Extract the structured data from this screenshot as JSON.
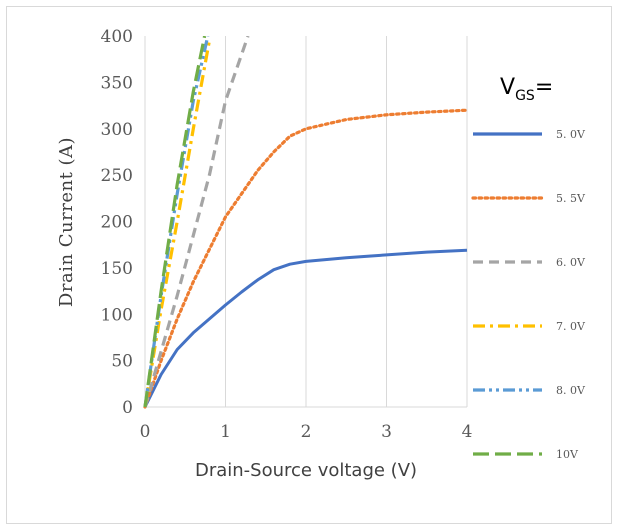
{
  "chart_data": {
    "type": "line",
    "title": "",
    "xlabel": "Drain-Source voltage (V)",
    "ylabel": "Drain Current (A)",
    "xlim": [
      0,
      4
    ],
    "ylim": [
      0,
      400
    ],
    "x_ticks": [
      "0",
      "1",
      "2",
      "3",
      "4"
    ],
    "y_ticks": [
      "0",
      "50",
      "100",
      "150",
      "200",
      "250",
      "300",
      "350",
      "400"
    ],
    "grid": "vertical",
    "legend_title": {
      "main": "V",
      "sub": "GS",
      "suffix": "="
    },
    "legend_position": "right",
    "series": [
      {
        "name": "5.0V",
        "color": "#4472c4",
        "style": "solid",
        "points": [
          [
            0,
            0
          ],
          [
            0.2,
            35
          ],
          [
            0.4,
            62
          ],
          [
            0.6,
            80
          ],
          [
            0.8,
            95
          ],
          [
            1.0,
            110
          ],
          [
            1.2,
            124
          ],
          [
            1.4,
            137
          ],
          [
            1.6,
            148
          ],
          [
            1.8,
            154
          ],
          [
            2.0,
            157
          ],
          [
            2.5,
            161
          ],
          [
            3.0,
            164
          ],
          [
            3.5,
            167
          ],
          [
            4.0,
            169
          ]
        ]
      },
      {
        "name": "5.5V",
        "color": "#ed7d31",
        "style": "dotted",
        "points": [
          [
            0,
            0
          ],
          [
            0.2,
            50
          ],
          [
            0.4,
            95
          ],
          [
            0.6,
            135
          ],
          [
            0.8,
            170
          ],
          [
            1.0,
            205
          ],
          [
            1.2,
            230
          ],
          [
            1.4,
            255
          ],
          [
            1.6,
            275
          ],
          [
            1.8,
            292
          ],
          [
            2.0,
            300
          ],
          [
            2.5,
            310
          ],
          [
            3.0,
            315
          ],
          [
            3.5,
            318
          ],
          [
            4.0,
            320
          ]
        ]
      },
      {
        "name": "6.0V",
        "color": "#a5a5a5",
        "style": "dashed",
        "points": [
          [
            0,
            0
          ],
          [
            0.2,
            60
          ],
          [
            0.4,
            120
          ],
          [
            0.6,
            185
          ],
          [
            0.8,
            250
          ],
          [
            1.0,
            330
          ],
          [
            1.28,
            400
          ]
        ]
      },
      {
        "name": "7.0V",
        "color": "#ffc000",
        "style": "dashdot",
        "points": [
          [
            0,
            0
          ],
          [
            0.2,
            105
          ],
          [
            0.4,
            200
          ],
          [
            0.6,
            300
          ],
          [
            0.8,
            395
          ]
        ]
      },
      {
        "name": "8.0V",
        "color": "#5b9bd5",
        "style": "dashdotdot",
        "points": [
          [
            0,
            0
          ],
          [
            0.2,
            120
          ],
          [
            0.4,
            230
          ],
          [
            0.6,
            330
          ],
          [
            0.78,
            400
          ]
        ]
      },
      {
        "name": "10V",
        "color": "#70ad47",
        "style": "longdash",
        "points": [
          [
            0,
            0
          ],
          [
            0.2,
            125
          ],
          [
            0.4,
            240
          ],
          [
            0.6,
            340
          ],
          [
            0.74,
            400
          ]
        ]
      }
    ]
  }
}
